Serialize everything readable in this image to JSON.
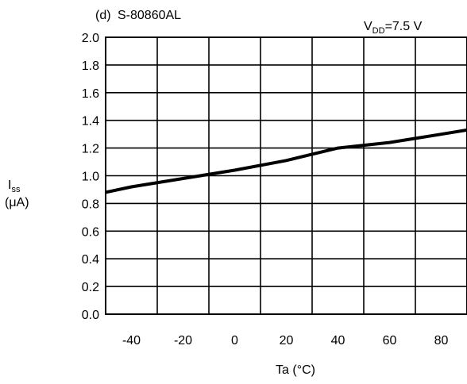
{
  "chart_data": {
    "type": "line",
    "panel_label": "(d)",
    "title": "S-80860AL",
    "condition": {
      "prefix": "V",
      "subscript": "DD",
      "suffix": "=7.5 V"
    },
    "xlabel": "Ta (°C)",
    "ylabel": {
      "symbol": "I",
      "subscript": "ss",
      "unit": "(μA)"
    },
    "xlim": [
      -50,
      90
    ],
    "ylim": [
      0,
      2.0
    ],
    "x_ticks": [
      -40,
      -20,
      0,
      20,
      40,
      60,
      80
    ],
    "y_ticks": [
      "0.0",
      "0.2",
      "0.4",
      "0.6",
      "0.8",
      "1.0",
      "1.2",
      "1.4",
      "1.6",
      "1.8",
      "2.0"
    ],
    "x_gridlines": [
      -30,
      -10,
      10,
      30,
      50,
      70
    ],
    "grid": true,
    "legend": "none",
    "line_color": "#000000",
    "series": [
      {
        "x": [
          -50,
          -40,
          -20,
          0,
          20,
          40,
          60,
          80,
          90
        ],
        "y": [
          0.88,
          0.92,
          0.98,
          1.04,
          1.11,
          1.2,
          1.24,
          1.3,
          1.33
        ]
      }
    ]
  }
}
